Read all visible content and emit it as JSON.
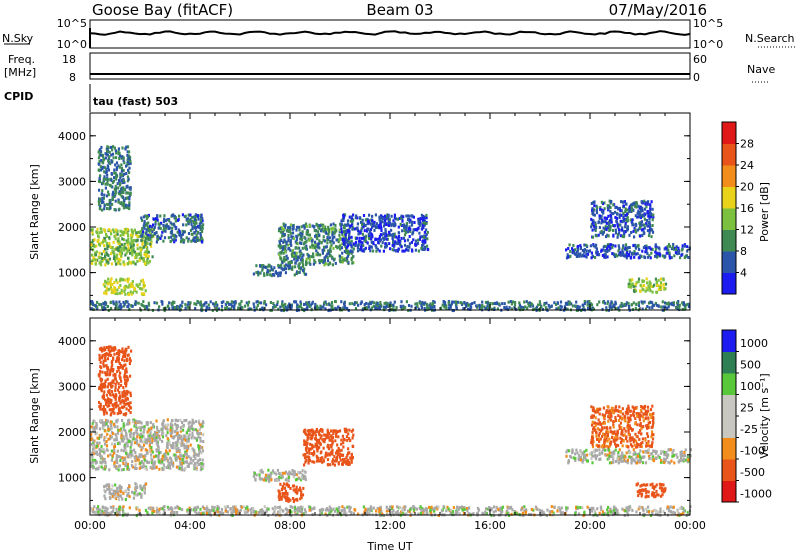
{
  "header": {
    "station": "Goose Bay (fitACF)",
    "beam": "Beam 03",
    "date": "07/May/2016"
  },
  "top_panels": {
    "nsky_label": "N.Sky",
    "nsky_ticks": [
      "10^5",
      "10^0"
    ],
    "nsearch_label": "N.Search",
    "nsearch_ticks": [
      "10^5",
      "10^0"
    ],
    "freq_label": "Freq.",
    "freq_unit": "[MHz]",
    "freq_ticks": [
      "18",
      "8"
    ],
    "nave_label": "Nave",
    "nave_ticks": [
      "60",
      "0"
    ],
    "cpid_label": "CPID",
    "cpid_value": "tau (fast) 503"
  },
  "colors": {
    "power": [
      "#1c1cf0",
      "#2a55a8",
      "#3f8a52",
      "#7cc040",
      "#e8d21a",
      "#f28c1a",
      "#e8541a",
      "#e01818"
    ],
    "velocity": [
      "#e01818",
      "#e8541a",
      "#f28c1a",
      "#c8c8c0",
      "#c8c8c0",
      "#58c83a",
      "#2f7f55",
      "#1c1cf0"
    ],
    "ground_scatter": "#a8a8a8"
  },
  "chart_data": [
    {
      "type": "heatmap",
      "name": "power",
      "xlabel": "",
      "ylabel": "Slant Range [km]",
      "x_ticks": [
        "00:00",
        "04:00",
        "08:00",
        "12:00",
        "16:00",
        "20:00",
        "00:00"
      ],
      "x_hours": [
        0,
        4,
        8,
        12,
        16,
        20,
        24
      ],
      "xlim": [
        0,
        24
      ],
      "y_ticks": [
        1000,
        2000,
        3000,
        4000
      ],
      "ylim": [
        180,
        4500
      ],
      "colorbar": {
        "label": "Power [dB]",
        "ticks": [
          4,
          8,
          12,
          16,
          20,
          24,
          28
        ],
        "range": [
          0,
          32
        ]
      },
      "regions": [
        {
          "t0": 0.0,
          "t1": 2.5,
          "r0": 1200,
          "r1": 2000,
          "level": 14
        },
        {
          "t0": 0.3,
          "t1": 1.6,
          "r0": 2400,
          "r1": 3800,
          "level": 8
        },
        {
          "t0": 2.0,
          "t1": 4.5,
          "r0": 1700,
          "r1": 2300,
          "level": 7
        },
        {
          "t0": 0.5,
          "t1": 2.2,
          "r0": 550,
          "r1": 900,
          "level": 16
        },
        {
          "t0": 6.5,
          "t1": 8.6,
          "r0": 950,
          "r1": 1200,
          "level": 8
        },
        {
          "t0": 7.5,
          "t1": 10.5,
          "r0": 1200,
          "r1": 2100,
          "level": 9
        },
        {
          "t0": 10.0,
          "t1": 13.5,
          "r0": 1500,
          "r1": 2300,
          "level": 5
        },
        {
          "t0": 19.0,
          "t1": 24.0,
          "r0": 1350,
          "r1": 1650,
          "level": 6
        },
        {
          "t0": 20.0,
          "t1": 22.5,
          "r0": 1800,
          "r1": 2600,
          "level": 6
        },
        {
          "t0": 21.5,
          "t1": 23.0,
          "r0": 600,
          "r1": 900,
          "level": 14
        },
        {
          "t0": 0.0,
          "t1": 24.0,
          "r0": 200,
          "r1": 400,
          "level": 8
        }
      ]
    },
    {
      "type": "heatmap",
      "name": "velocity",
      "xlabel": "Time UT",
      "ylabel": "Slant Range [km]",
      "x_ticks": [
        "00:00",
        "04:00",
        "08:00",
        "12:00",
        "16:00",
        "20:00",
        "00:00"
      ],
      "x_hours": [
        0,
        4,
        8,
        12,
        16,
        20,
        24
      ],
      "xlim": [
        0,
        24
      ],
      "y_ticks": [
        1000,
        2000,
        3000,
        4000
      ],
      "ylim": [
        180,
        4500
      ],
      "colorbar": {
        "label": "Velocity [m s⁻¹]",
        "ticks": [
          "1000",
          "500",
          "100",
          "25",
          "-25",
          "-100",
          "-500",
          "-1000"
        ]
      },
      "regions": [
        {
          "t0": 0.0,
          "t1": 4.5,
          "r0": 1200,
          "r1": 2300,
          "level": 0
        },
        {
          "t0": 0.3,
          "t1": 1.6,
          "r0": 2400,
          "r1": 3900,
          "level": -200
        },
        {
          "t0": 0.5,
          "t1": 2.2,
          "r0": 550,
          "r1": 900,
          "level": 0
        },
        {
          "t0": 6.5,
          "t1": 8.6,
          "r0": 950,
          "r1": 1200,
          "level": 0
        },
        {
          "t0": 8.5,
          "t1": 10.5,
          "r0": 1300,
          "r1": 2100,
          "level": -300
        },
        {
          "t0": 7.5,
          "t1": 8.5,
          "r0": 500,
          "r1": 900,
          "level": -300
        },
        {
          "t0": 19.0,
          "t1": 24.0,
          "r0": 1350,
          "r1": 1650,
          "level": 0
        },
        {
          "t0": 20.0,
          "t1": 22.5,
          "r0": 1700,
          "r1": 2600,
          "level": -150
        },
        {
          "t0": 21.8,
          "t1": 23.0,
          "r0": 600,
          "r1": 900,
          "level": -300
        },
        {
          "t0": 0.0,
          "t1": 24.0,
          "r0": 200,
          "r1": 400,
          "level": 0
        }
      ]
    }
  ]
}
